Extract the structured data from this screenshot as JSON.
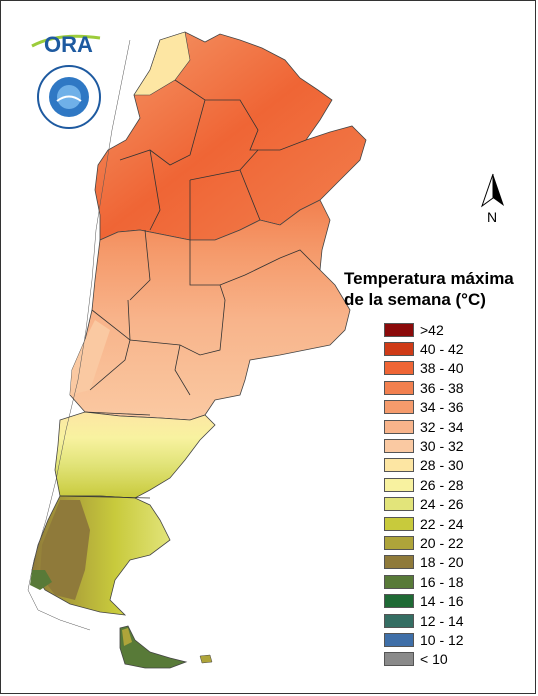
{
  "logo": {
    "ora_text": "ORA",
    "seal_text": "SERVICIO METEOROLOGICO NACIONAL ARGENTINA"
  },
  "north_label": "N",
  "legend": {
    "title_line1": "Temperatura máxima",
    "title_line2": "de la semana (°C)",
    "items": [
      {
        "label": ">42",
        "color": "#8b0a0a"
      },
      {
        "label": "40 - 42",
        "color": "#cf3b17"
      },
      {
        "label": "38 - 40",
        "color": "#ef6535"
      },
      {
        "label": "36 - 38",
        "color": "#f2804f"
      },
      {
        "label": "34 - 36",
        "color": "#f59b6c"
      },
      {
        "label": "32 - 34",
        "color": "#f8b48b"
      },
      {
        "label": "30 - 32",
        "color": "#fac9a2"
      },
      {
        "label": "28 - 30",
        "color": "#fde6a3"
      },
      {
        "label": "26 - 28",
        "color": "#f8f2a0"
      },
      {
        "label": "24 - 26",
        "color": "#e2e47a"
      },
      {
        "label": "22 - 24",
        "color": "#c8ca3c"
      },
      {
        "label": "20 - 22",
        "color": "#aea43a"
      },
      {
        "label": "18 - 20",
        "color": "#8f7a3a"
      },
      {
        "label": "16 - 18",
        "color": "#587a38"
      },
      {
        "label": "14 - 16",
        "color": "#1f6a35"
      },
      {
        "label": "12 - 14",
        "color": "#356e63"
      },
      {
        "label": "10 - 12",
        "color": "#3f6fa8"
      },
      {
        "label": "< 10",
        "color": "#8a8a8a"
      }
    ]
  }
}
